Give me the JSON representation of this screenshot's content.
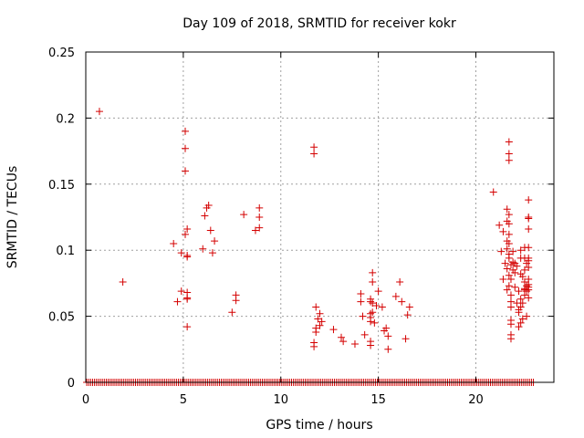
{
  "chart_data": {
    "type": "scatter",
    "title": "Day 109 of 2018, SRMTID for receiver kokr",
    "xlabel": "GPS time / hours",
    "ylabel": "SRMTID / TECUs",
    "xlim": [
      0,
      24
    ],
    "ylim": [
      0,
      0.25
    ],
    "xticks": [
      "0",
      "5",
      "10",
      "15",
      "20"
    ],
    "yticks": [
      "0",
      "0.05",
      "0.1",
      "0.15",
      "0.2",
      "0.25"
    ],
    "grid": true,
    "marker": "plus",
    "color": "#d40000",
    "baseline": {
      "y": 0,
      "x_start": 0.05,
      "x_end": 22.95,
      "step": 0.1
    },
    "points": [
      [
        0.7,
        0.205
      ],
      [
        1.9,
        0.076
      ],
      [
        4.5,
        0.105
      ],
      [
        4.7,
        0.061
      ],
      [
        4.9,
        0.098
      ],
      [
        4.9,
        0.069
      ],
      [
        5.1,
        0.19
      ],
      [
        5.1,
        0.177
      ],
      [
        5.1,
        0.16
      ],
      [
        5.1,
        0.112
      ],
      [
        5.2,
        0.096
      ],
      [
        5.2,
        0.095
      ],
      [
        5.2,
        0.116
      ],
      [
        5.2,
        0.068
      ],
      [
        5.2,
        0.063
      ],
      [
        5.2,
        0.064
      ],
      [
        5.2,
        0.042
      ],
      [
        6.0,
        0.101
      ],
      [
        6.1,
        0.126
      ],
      [
        6.2,
        0.132
      ],
      [
        6.3,
        0.134
      ],
      [
        6.4,
        0.115
      ],
      [
        6.5,
        0.098
      ],
      [
        6.6,
        0.107
      ],
      [
        7.5,
        0.053
      ],
      [
        7.7,
        0.062
      ],
      [
        7.7,
        0.066
      ],
      [
        8.1,
        0.127
      ],
      [
        8.7,
        0.115
      ],
      [
        8.9,
        0.132
      ],
      [
        8.9,
        0.125
      ],
      [
        8.9,
        0.117
      ],
      [
        11.7,
        0.178
      ],
      [
        11.7,
        0.173
      ],
      [
        11.7,
        0.03
      ],
      [
        11.7,
        0.027
      ],
      [
        11.8,
        0.041
      ],
      [
        11.8,
        0.038
      ],
      [
        11.8,
        0.057
      ],
      [
        11.9,
        0.048
      ],
      [
        12.0,
        0.052
      ],
      [
        12.1,
        0.046
      ],
      [
        12.0,
        0.043
      ],
      [
        12.7,
        0.04
      ],
      [
        13.1,
        0.034
      ],
      [
        13.2,
        0.031
      ],
      [
        13.8,
        0.029
      ],
      [
        14.1,
        0.067
      ],
      [
        14.1,
        0.061
      ],
      [
        14.2,
        0.05
      ],
      [
        14.3,
        0.036
      ],
      [
        14.6,
        0.063
      ],
      [
        14.6,
        0.061
      ],
      [
        14.6,
        0.052
      ],
      [
        14.6,
        0.049
      ],
      [
        14.6,
        0.046
      ],
      [
        14.6,
        0.031
      ],
      [
        14.6,
        0.028
      ],
      [
        14.7,
        0.083
      ],
      [
        14.7,
        0.076
      ],
      [
        14.7,
        0.06
      ],
      [
        14.7,
        0.053
      ],
      [
        14.8,
        0.045
      ],
      [
        14.9,
        0.058
      ],
      [
        15.0,
        0.069
      ],
      [
        15.2,
        0.057
      ],
      [
        15.3,
        0.039
      ],
      [
        15.4,
        0.041
      ],
      [
        15.5,
        0.025
      ],
      [
        15.5,
        0.035
      ],
      [
        15.9,
        0.065
      ],
      [
        16.1,
        0.076
      ],
      [
        16.2,
        0.061
      ],
      [
        16.4,
        0.033
      ],
      [
        16.5,
        0.051
      ],
      [
        16.6,
        0.057
      ],
      [
        20.9,
        0.144
      ],
      [
        21.2,
        0.119
      ],
      [
        21.3,
        0.099
      ],
      [
        21.4,
        0.114
      ],
      [
        21.4,
        0.078
      ],
      [
        21.5,
        0.09
      ],
      [
        21.6,
        0.131
      ],
      [
        21.6,
        0.122
      ],
      [
        21.6,
        0.107
      ],
      [
        21.6,
        0.101
      ],
      [
        21.6,
        0.086
      ],
      [
        21.6,
        0.07
      ],
      [
        21.7,
        0.182
      ],
      [
        21.7,
        0.173
      ],
      [
        21.7,
        0.168
      ],
      [
        21.7,
        0.127
      ],
      [
        21.7,
        0.12
      ],
      [
        21.7,
        0.112
      ],
      [
        21.7,
        0.105
      ],
      [
        21.7,
        0.097
      ],
      [
        21.7,
        0.094
      ],
      [
        21.7,
        0.081
      ],
      [
        21.7,
        0.073
      ],
      [
        21.8,
        0.089
      ],
      [
        21.8,
        0.078
      ],
      [
        21.8,
        0.066
      ],
      [
        21.8,
        0.061
      ],
      [
        21.8,
        0.057
      ],
      [
        21.8,
        0.047
      ],
      [
        21.8,
        0.044
      ],
      [
        21.8,
        0.036
      ],
      [
        21.8,
        0.033
      ],
      [
        21.9,
        0.099
      ],
      [
        21.9,
        0.091
      ],
      [
        21.9,
        0.085
      ],
      [
        22.0,
        0.09
      ],
      [
        22.0,
        0.083
      ],
      [
        22.0,
        0.072
      ],
      [
        22.1,
        0.06
      ],
      [
        22.1,
        0.088
      ],
      [
        22.2,
        0.069
      ],
      [
        22.2,
        0.055
      ],
      [
        22.2,
        0.053
      ],
      [
        22.2,
        0.042
      ],
      [
        22.3,
        0.1
      ],
      [
        22.3,
        0.094
      ],
      [
        22.3,
        0.082
      ],
      [
        22.3,
        0.063
      ],
      [
        22.3,
        0.057
      ],
      [
        22.3,
        0.045
      ],
      [
        22.4,
        0.08
      ],
      [
        22.4,
        0.06
      ],
      [
        22.4,
        0.048
      ],
      [
        22.5,
        0.102
      ],
      [
        22.5,
        0.094
      ],
      [
        22.5,
        0.085
      ],
      [
        22.5,
        0.076
      ],
      [
        22.5,
        0.071
      ],
      [
        22.5,
        0.07
      ],
      [
        22.5,
        0.066
      ],
      [
        22.6,
        0.09
      ],
      [
        22.6,
        0.073
      ],
      [
        22.6,
        0.069
      ],
      [
        22.7,
        0.138
      ],
      [
        22.7,
        0.125
      ],
      [
        22.7,
        0.124
      ],
      [
        22.7,
        0.116
      ],
      [
        22.7,
        0.102
      ],
      [
        22.7,
        0.094
      ],
      [
        22.7,
        0.092
      ],
      [
        22.7,
        0.087
      ],
      [
        22.7,
        0.078
      ],
      [
        22.7,
        0.074
      ],
      [
        22.7,
        0.072
      ],
      [
        22.7,
        0.07
      ],
      [
        22.7,
        0.064
      ],
      [
        22.6,
        0.05
      ]
    ]
  }
}
